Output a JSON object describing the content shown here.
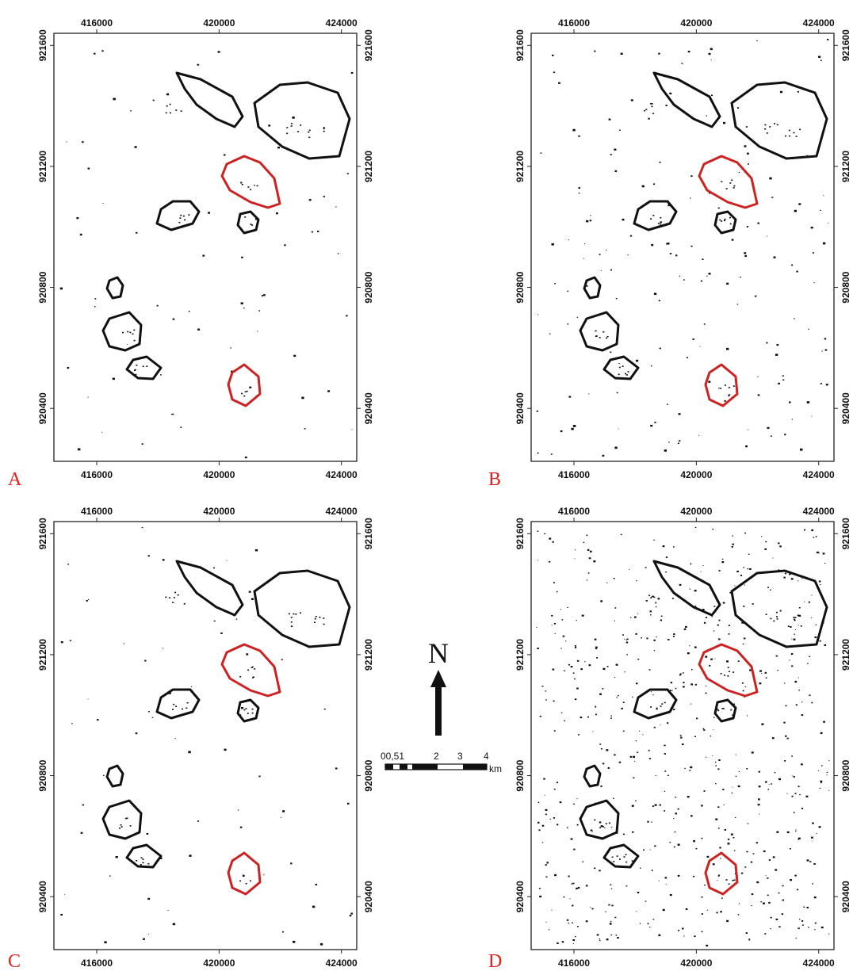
{
  "panels": [
    {
      "label": "A",
      "speckle": "light"
    },
    {
      "label": "B",
      "speckle": "medium"
    },
    {
      "label": "C",
      "speckle": "light"
    },
    {
      "label": "D",
      "speckle": "heavy"
    }
  ],
  "x_ticks": [
    "416000",
    "420000",
    "424000"
  ],
  "y_ticks": [
    "921600",
    "921200",
    "920800",
    "920400"
  ],
  "north_label": "N",
  "scale_bar": {
    "labels": [
      "00,51",
      "2",
      "3",
      "4"
    ],
    "unit": "km"
  },
  "colors": {
    "outline_black": "#111111",
    "outline_red": "#cc2222",
    "label_red": "#e0201c",
    "frame": "#222222"
  }
}
